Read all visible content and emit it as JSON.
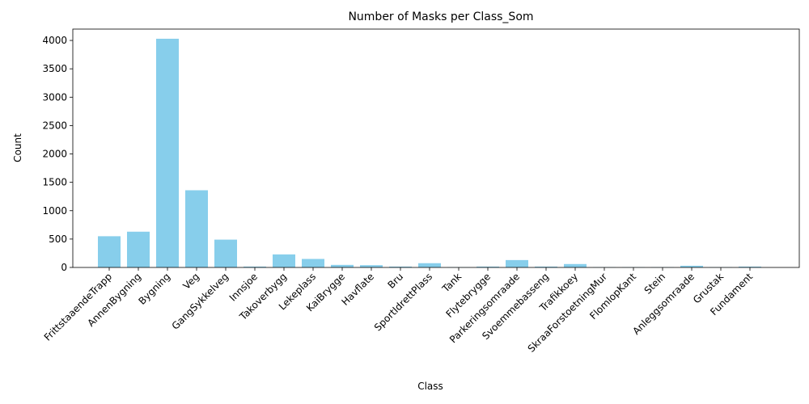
{
  "chart_data": {
    "type": "bar",
    "title": "Number of Masks per Class_Som",
    "xlabel": "Class",
    "ylabel": "Count",
    "ylim": [
      0,
      4200
    ],
    "yticks": [
      0,
      500,
      1000,
      1500,
      2000,
      2500,
      3000,
      3500,
      4000
    ],
    "grid": false,
    "bar_color": "#87ceeb",
    "categories": [
      "FrittstaaendeTrapp",
      "AnnenBygning",
      "Bygning",
      "Veg",
      "GangSykkelveg",
      "Innsjoe",
      "Takoverbygg",
      "Lekeplass",
      "KaiBrygge",
      "Havflate",
      "Bru",
      "SportIdrettPlass",
      "Tank",
      "Flytebrygge",
      "Parkeringsomraade",
      "Svoemmebasseng",
      "Trafikkoey",
      "SkraaForstoetningMur",
      "FlomlopKant",
      "Stein",
      "Anleggsomraade",
      "Grustak",
      "Fundament"
    ],
    "values": [
      550,
      630,
      4030,
      1360,
      490,
      15,
      230,
      150,
      45,
      40,
      15,
      75,
      5,
      15,
      130,
      15,
      60,
      5,
      5,
      5,
      30,
      5,
      15
    ]
  }
}
